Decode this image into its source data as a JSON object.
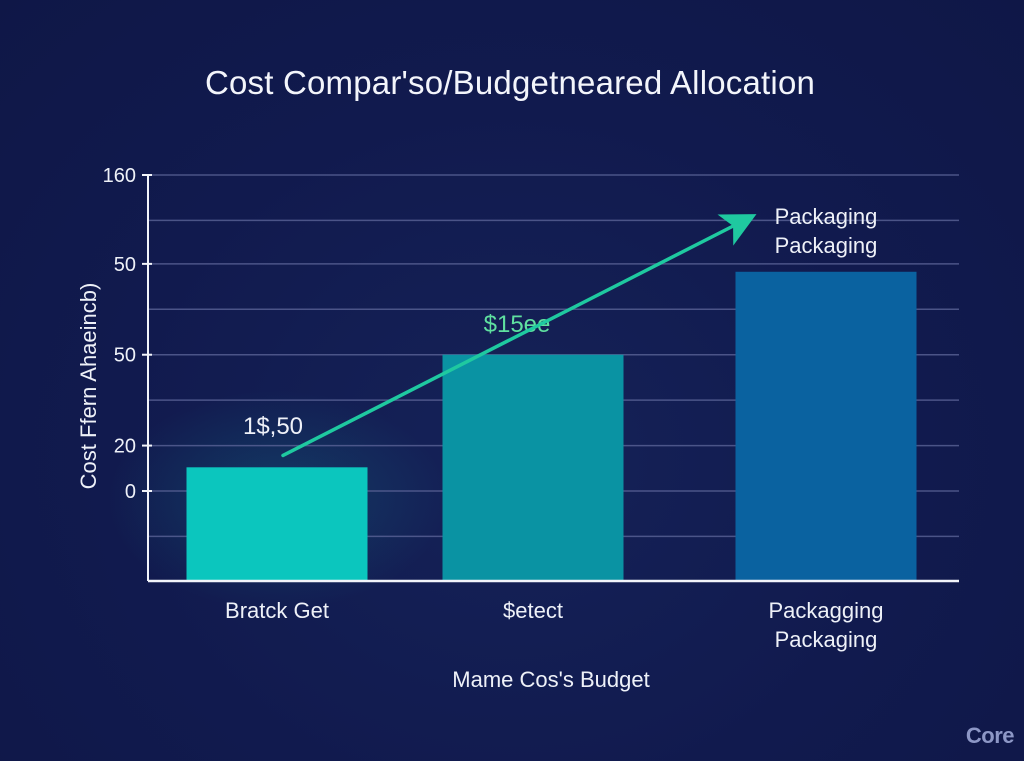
{
  "chart_data": {
    "type": "bar",
    "title": "Cost Compar'so/Budgetneared Allocation",
    "xlabel": "Mame Cos's Budget",
    "ylabel": "Cost Ffern Ahaeincb)",
    "categories": [
      "Bratck Get",
      "$etect",
      "Packagging\nPackaging"
    ],
    "values": [
      12,
      69,
      111
    ],
    "ylim": [
      0,
      160
    ],
    "ymin_visible": -45,
    "y_ticks": [
      {
        "label": "160",
        "value": 160
      },
      {
        "label": "50",
        "value": 115
      },
      {
        "label": "50",
        "value": 69
      },
      {
        "label": "20",
        "value": 23
      },
      {
        "label": "0",
        "value": 0
      }
    ],
    "gridlines": [
      160,
      137,
      115,
      92,
      69,
      46,
      23,
      0,
      -23
    ],
    "grid": true,
    "bar_colors": [
      "#0bc6be",
      "#0a93a3",
      "#0a62a0"
    ],
    "data_labels": [
      {
        "text": "1$,50",
        "bar": 0,
        "color": "#eef1f8"
      },
      {
        "text": "$15ee",
        "bar": 1,
        "color": "#5fe0a0"
      }
    ],
    "trend_arrow": {
      "from": {
        "category": 0,
        "value": 18
      },
      "to": {
        "category": 2,
        "value": 140
      },
      "color": "#1fc9a0"
    },
    "callout": {
      "lines": [
        "Packaging",
        "Packaging"
      ],
      "near": "arrow-tip"
    },
    "legend": "none"
  },
  "watermark": "Core"
}
